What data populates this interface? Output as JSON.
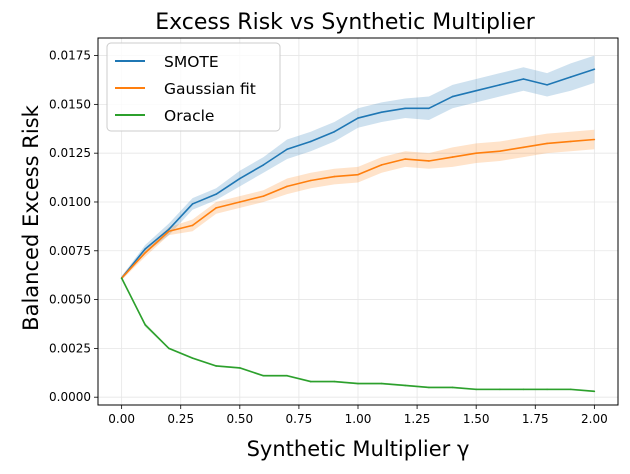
{
  "chart_data": {
    "type": "line",
    "title": "Excess Risk vs Synthetic Multiplier",
    "xlabel": "Synthetic Multiplier γ",
    "ylabel": "Balanced Excess Risk",
    "xlim": [
      -0.1,
      2.1
    ],
    "ylim": [
      -0.0004,
      0.0184
    ],
    "grid": true,
    "legend_position": "top-left",
    "x_ticks": [
      0.0,
      0.25,
      0.5,
      0.75,
      1.0,
      1.25,
      1.5,
      1.75,
      2.0
    ],
    "x_tick_labels": [
      "0.00",
      "0.25",
      "0.50",
      "0.75",
      "1.00",
      "1.25",
      "1.50",
      "1.75",
      "2.00"
    ],
    "y_ticks": [
      0.0,
      0.0025,
      0.005,
      0.0075,
      0.01,
      0.0125,
      0.015,
      0.0175
    ],
    "y_tick_labels": [
      "0.0000",
      "0.0025",
      "0.0050",
      "0.0075",
      "0.0100",
      "0.0125",
      "0.0150",
      "0.0175"
    ],
    "x": [
      0.0,
      0.1,
      0.2,
      0.3,
      0.4,
      0.5,
      0.6,
      0.7,
      0.8,
      0.9,
      1.0,
      1.1,
      1.2,
      1.3,
      1.4,
      1.5,
      1.6,
      1.7,
      1.8,
      1.9,
      2.0
    ],
    "series": [
      {
        "name": "SMOTE",
        "color": "#1f77b4",
        "values": [
          0.0061,
          0.0076,
          0.0086,
          0.0099,
          0.0104,
          0.0112,
          0.0119,
          0.0127,
          0.0131,
          0.0136,
          0.0143,
          0.0146,
          0.0148,
          0.0148,
          0.0154,
          0.0157,
          0.016,
          0.0163,
          0.016,
          0.0164,
          0.0168
        ],
        "band": [
          0.0001,
          0.0002,
          0.0003,
          0.0003,
          0.0003,
          0.0004,
          0.0004,
          0.0005,
          0.0005,
          0.0005,
          0.0005,
          0.0005,
          0.0005,
          0.0006,
          0.0006,
          0.0006,
          0.0006,
          0.0006,
          0.0006,
          0.0007,
          0.0007
        ]
      },
      {
        "name": "Gaussian fit",
        "color": "#ff7f0e",
        "values": [
          0.0061,
          0.0074,
          0.0085,
          0.0088,
          0.0097,
          0.01,
          0.0103,
          0.0108,
          0.0111,
          0.0113,
          0.0114,
          0.0119,
          0.0122,
          0.0121,
          0.0123,
          0.0125,
          0.0126,
          0.0128,
          0.013,
          0.0131,
          0.0132
        ],
        "band": [
          0.0001,
          0.0002,
          0.0002,
          0.0003,
          0.0003,
          0.0003,
          0.0003,
          0.0004,
          0.0004,
          0.0004,
          0.0004,
          0.0004,
          0.0004,
          0.0004,
          0.0005,
          0.0005,
          0.0005,
          0.0005,
          0.0005,
          0.0005,
          0.0005
        ]
      },
      {
        "name": "Oracle",
        "color": "#2ca02c",
        "values": [
          0.0061,
          0.0037,
          0.0025,
          0.002,
          0.0016,
          0.0015,
          0.0011,
          0.0011,
          0.0008,
          0.0008,
          0.0007,
          0.0007,
          0.0006,
          0.0005,
          0.0005,
          0.0004,
          0.0004,
          0.0004,
          0.0004,
          0.0004,
          0.0003
        ],
        "band": [
          0.0001,
          0.0001,
          5e-05,
          5e-05,
          5e-05,
          5e-05,
          5e-05,
          5e-05,
          5e-05,
          5e-05,
          5e-05,
          5e-05,
          5e-05,
          5e-05,
          5e-05,
          5e-05,
          5e-05,
          5e-05,
          5e-05,
          5e-05,
          5e-05
        ]
      }
    ]
  }
}
